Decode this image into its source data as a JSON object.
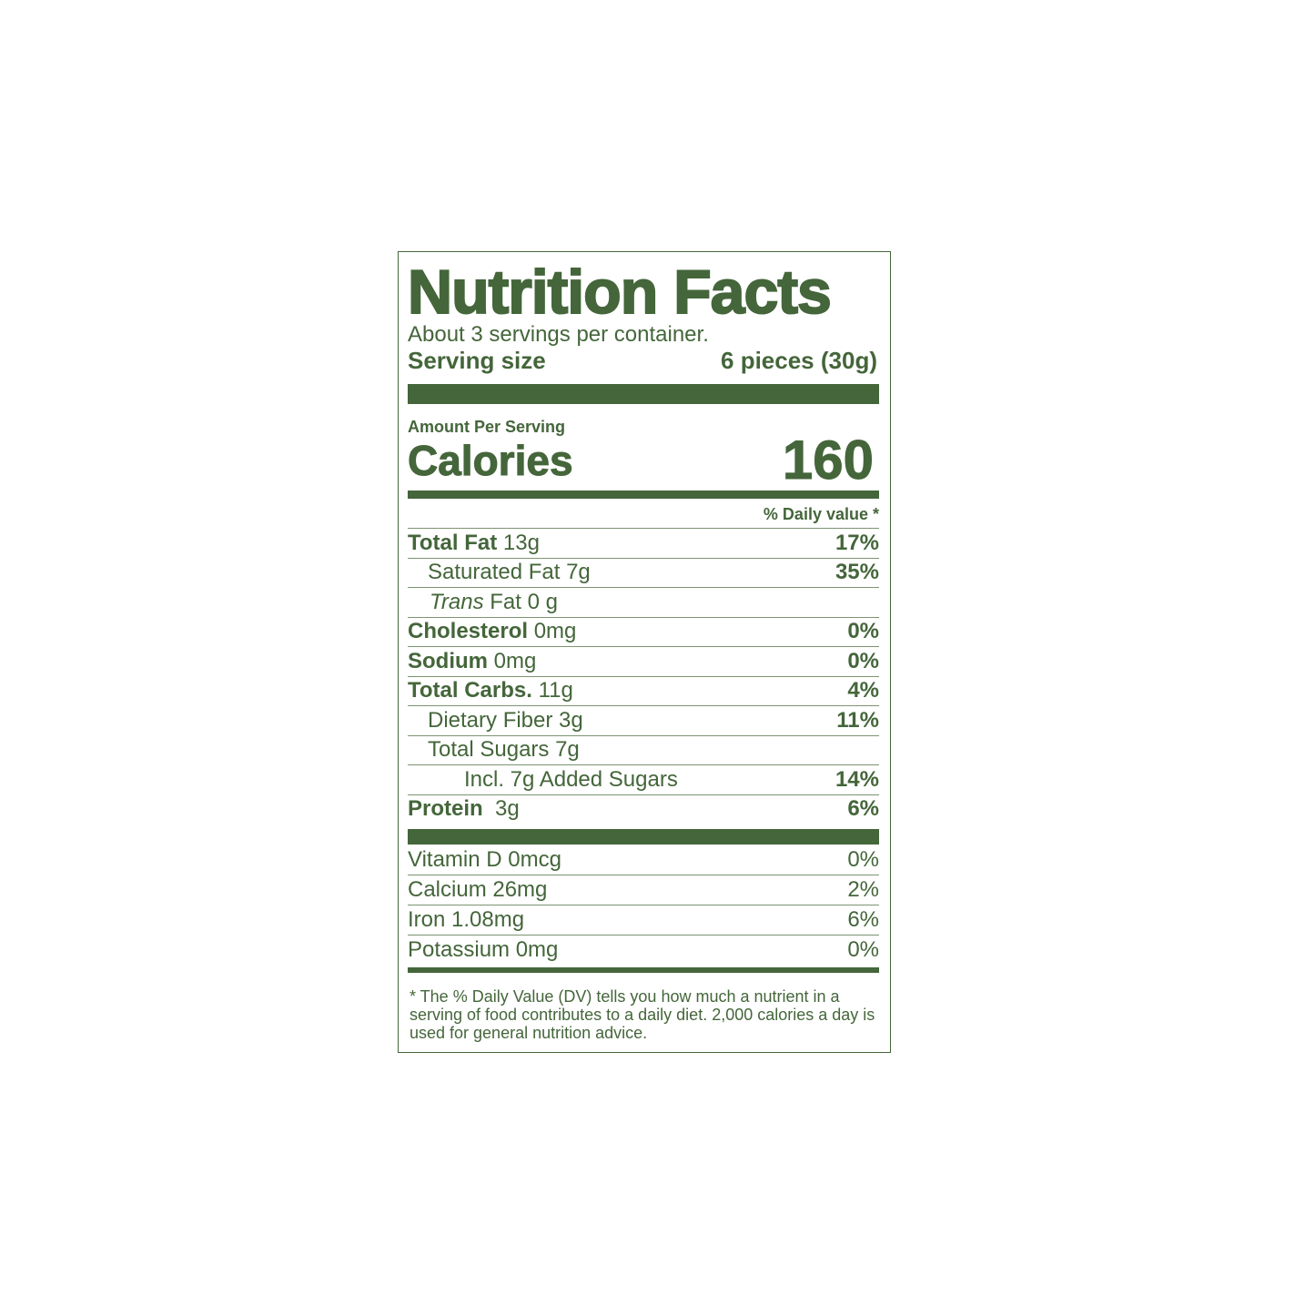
{
  "colors": {
    "brand": "#44663a"
  },
  "title": "Nutrition Facts",
  "servings_per_container": "About 3 servings per container.",
  "serving_size": {
    "label": "Serving size",
    "value": "6 pieces (30g)"
  },
  "amount_per_serving": "Amount Per Serving",
  "calories": {
    "label": "Calories",
    "value": "160"
  },
  "daily_value_header": "% Daily value *",
  "nutrients": [
    {
      "name": "Total Fat",
      "amount": "13g",
      "dv": "17%"
    },
    {
      "name": "Saturated Fat 7g",
      "amount": "",
      "dv": "35%"
    },
    {
      "name": "Trans",
      "amount": "Fat 0 g",
      "dv": ""
    },
    {
      "name": "Cholesterol",
      "amount": "0mg",
      "dv": "0%"
    },
    {
      "name": "Sodium",
      "amount": "0mg",
      "dv": "0%"
    },
    {
      "name": "Total Carbs.",
      "amount": "11g",
      "dv": "4%"
    },
    {
      "name": "Dietary Fiber 3g",
      "amount": "",
      "dv": "11%"
    },
    {
      "name": "Total Sugars 7g",
      "amount": "",
      "dv": ""
    },
    {
      "name": "Incl. 7g Added Sugars",
      "amount": "",
      "dv": "14%"
    },
    {
      "name": "Protein",
      "amount": "3g",
      "dv": "6%"
    }
  ],
  "vitamins": [
    {
      "name": "Vitamin D 0mcg",
      "dv": "0%"
    },
    {
      "name": "Calcium 26mg",
      "dv": "2%"
    },
    {
      "name": "Iron 1.08mg",
      "dv": "6%"
    },
    {
      "name": "Potassium 0mg",
      "dv": "0%"
    }
  ],
  "footnote": "* The % Daily Value (DV) tells you how much a nutrient in a serving of food contributes to a daily diet. 2,000 calories a day is used for general nutrition advice."
}
